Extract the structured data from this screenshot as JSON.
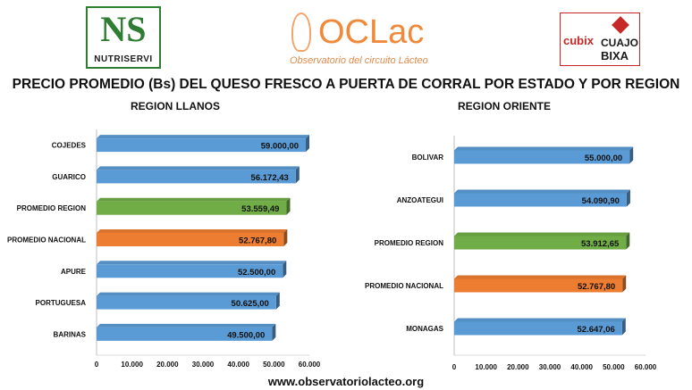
{
  "logos": {
    "nutriservi": {
      "mark": "NS",
      "text": "NUTRISERVI"
    },
    "oclac": {
      "name": "OCLac",
      "subtitle": "Observatorio del circuito Lácteo"
    },
    "cubix": {
      "brand": "cubix",
      "line1": "CUAJO",
      "line2": "BIXA"
    }
  },
  "title": "PRECIO PROMEDIO (Bs) DEL QUESO FRESCO A PUERTA DE CORRAL POR ESTADO Y POR REGION",
  "footer": "www.observatoriolacteo.org",
  "colors": {
    "blue": "#5b9bd5",
    "green": "#70ad47",
    "orange": "#ed7d31"
  },
  "chart_data": [
    {
      "type": "bar",
      "orientation": "horizontal",
      "title": "REGION LLANOS",
      "categories": [
        "COJEDES",
        "GUARICO",
        "PROMEDIO REGION",
        "PROMEDIO NACIONAL",
        "APURE",
        "PORTUGUESA",
        "BARINAS"
      ],
      "values": [
        59000.0,
        56172.43,
        53559.49,
        52767.8,
        52500.0,
        50625.0,
        49500.0
      ],
      "labels": [
        "59.000,00",
        "56.172,43",
        "53.559,49",
        "52.767,80",
        "52.500,00",
        "50.625,00",
        "49.500,00"
      ],
      "bar_colors": [
        "blue",
        "blue",
        "green",
        "orange",
        "blue",
        "blue",
        "blue"
      ],
      "xlim": [
        0,
        60000
      ],
      "xticks": [
        "0",
        "10.000",
        "20.000",
        "30.000",
        "40.000",
        "50.000",
        "60.000"
      ],
      "grid": false
    },
    {
      "type": "bar",
      "orientation": "horizontal",
      "title": "REGION ORIENTE",
      "categories": [
        "BOLIVAR",
        "ANZOATEGUI",
        "PROMEDIO REGION",
        "PROMEDIO NACIONAL",
        "MONAGAS"
      ],
      "values": [
        55000.0,
        54090.9,
        53912.65,
        52767.8,
        52647.06
      ],
      "labels": [
        "55.000,00",
        "54.090,90",
        "53.912,65",
        "52.767,80",
        "52.647,06"
      ],
      "bar_colors": [
        "blue",
        "blue",
        "green",
        "orange",
        "blue"
      ],
      "xlim": [
        0,
        60000
      ],
      "xticks": [
        "0",
        "10.000",
        "20.000",
        "30.000",
        "40.000",
        "50.000",
        "60.000"
      ],
      "grid": false
    }
  ]
}
